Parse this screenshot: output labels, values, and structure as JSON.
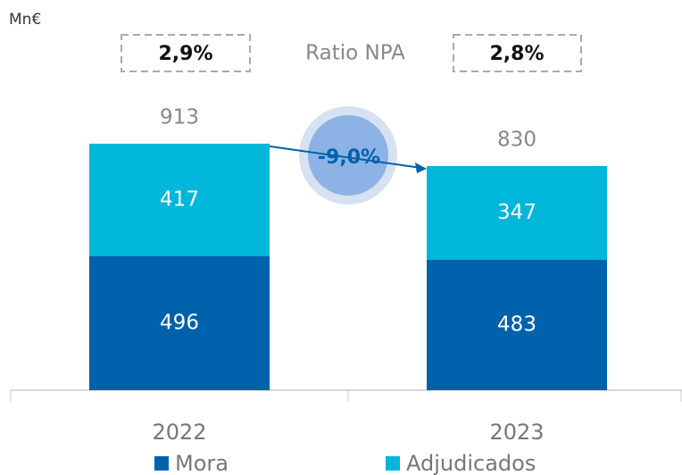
{
  "chart_data": {
    "type": "stacked_bar",
    "unit_label": "Mn€",
    "categories": [
      "2022",
      "2023"
    ],
    "series": [
      {
        "name": "Mora",
        "color": "#0061ad",
        "values": [
          496,
          483
        ]
      },
      {
        "name": "Adjudicados",
        "color": "#00b6d9",
        "values": [
          417,
          347
        ]
      }
    ],
    "totals": [
      913,
      830
    ],
    "ylim": [
      0,
      1000
    ],
    "npa_ratio": {
      "label": "Ratio NPA",
      "values": [
        2.9,
        2.8
      ],
      "value_labels": [
        "2,9%",
        "2,8%"
      ]
    },
    "change": {
      "value": -9.0,
      "label": "-9,0%"
    }
  }
}
